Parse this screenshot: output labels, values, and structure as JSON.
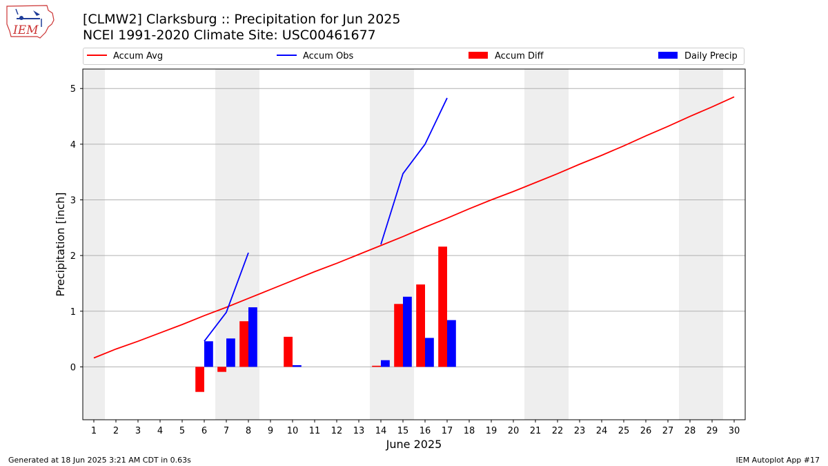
{
  "header": {
    "title_line1": "[CLMW2] Clarksburg :: Precipitation for Jun 2025",
    "title_line2": "NCEI 1991-2020 Climate Site: USC00461677",
    "logo_text": "IEM"
  },
  "footer": {
    "left": "Generated at 18 Jun 2025 3:21 AM CDT in 0.63s",
    "right": "IEM Autoplot App #17"
  },
  "colors": {
    "accum_avg": "#ff0000",
    "accum_obs": "#0000ff",
    "accum_diff": "#ff0000",
    "daily_precip": "#0000ff",
    "weekend_shade": "#eeeeee",
    "grid": "#b0b0b0"
  },
  "chart_data": {
    "type": "bar",
    "xlabel": "June 2025",
    "ylabel": "Precipitation [inch]",
    "xlim": [
      0.5,
      30.5
    ],
    "ylim": [
      -0.95,
      5.35
    ],
    "x_ticks": [
      1,
      2,
      3,
      4,
      5,
      6,
      7,
      8,
      9,
      10,
      11,
      12,
      13,
      14,
      15,
      16,
      17,
      18,
      19,
      20,
      21,
      22,
      23,
      24,
      25,
      26,
      27,
      28,
      29,
      30
    ],
    "y_ticks": [
      0,
      1,
      2,
      3,
      4,
      5
    ],
    "grid": "y",
    "legend_position": "top",
    "shaded_days": [
      1,
      7,
      8,
      14,
      15,
      21,
      22,
      28,
      29
    ],
    "series": [
      {
        "name": "Accum Avg",
        "kind": "line",
        "x": [
          1,
          2,
          3,
          4,
          5,
          6,
          7,
          8,
          9,
          10,
          11,
          12,
          13,
          14,
          15,
          16,
          17,
          18,
          19,
          20,
          21,
          22,
          23,
          24,
          25,
          26,
          27,
          28,
          29,
          30
        ],
        "values": [
          0.16,
          0.32,
          0.46,
          0.61,
          0.76,
          0.92,
          1.07,
          1.23,
          1.39,
          1.55,
          1.71,
          1.86,
          2.02,
          2.18,
          2.34,
          2.51,
          2.67,
          2.84,
          3.0,
          3.15,
          3.31,
          3.47,
          3.64,
          3.8,
          3.97,
          4.15,
          4.32,
          4.5,
          4.67,
          4.85
        ]
      },
      {
        "name": "Accum Obs",
        "kind": "line",
        "segments": [
          {
            "x": [
              6,
              7,
              8
            ],
            "values": [
              0.46,
              0.98,
              2.05
            ]
          },
          {
            "x": [
              14,
              15,
              16,
              17
            ],
            "values": [
              2.2,
              3.47,
              4.0,
              4.83
            ]
          }
        ]
      },
      {
        "name": "Accum Diff",
        "kind": "bar",
        "x": [
          6,
          7,
          8,
          10,
          14,
          15,
          16,
          17
        ],
        "values": [
          -0.45,
          -0.09,
          0.82,
          0.54,
          0.02,
          1.13,
          1.48,
          2.16
        ]
      },
      {
        "name": "Daily Precip",
        "kind": "bar",
        "x": [
          6,
          7,
          8,
          10,
          14,
          15,
          16,
          17
        ],
        "values": [
          0.46,
          0.51,
          1.07,
          0.03,
          0.12,
          1.26,
          0.52,
          0.84
        ]
      }
    ]
  }
}
